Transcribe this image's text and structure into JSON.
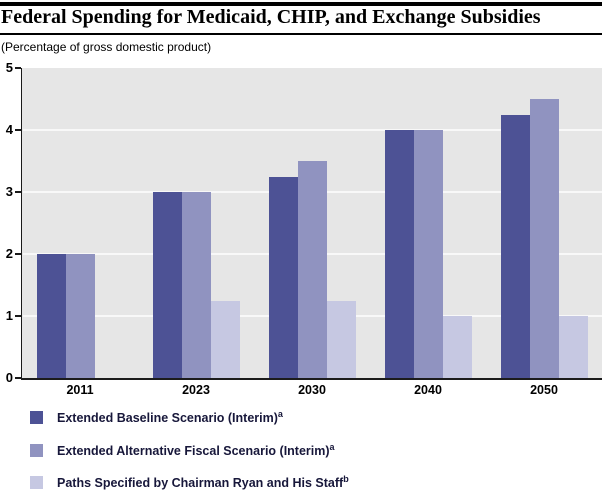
{
  "header": {
    "title": "Federal Spending for Medicaid, CHIP, and Exchange Subsidies",
    "subtitle": "(Percentage of gross domestic product)"
  },
  "chart_data": {
    "type": "bar",
    "title": "Federal Spending for Medicaid, CHIP, and Exchange Subsidies",
    "subtitle": "(Percentage of gross domestic product)",
    "xlabel": "",
    "ylabel": "(Percentage of gross domestic product)",
    "categories": [
      "2011",
      "2023",
      "2030",
      "2040",
      "2050"
    ],
    "series": [
      {
        "name": "Extended Baseline Scenario (Interim)",
        "superscript": "a",
        "color": "#4d5295",
        "values": [
          2.0,
          3.0,
          3.25,
          4.0,
          4.25
        ]
      },
      {
        "name": "Extended Alternative Fiscal Scenario (Interim)",
        "superscript": "a",
        "color": "#9093c0",
        "values": [
          2.0,
          3.0,
          3.5,
          4.0,
          4.5
        ]
      },
      {
        "name": "Paths Specified by Chairman Ryan and His Staff",
        "superscript": "b",
        "color": "#c6c8e2",
        "values": [
          null,
          1.25,
          1.25,
          1.0,
          1.0
        ]
      }
    ],
    "ylim": [
      0,
      5
    ],
    "yticks": [
      0,
      1,
      2,
      3,
      4,
      5
    ],
    "grid": true,
    "gridline_color": "#f8f8f8",
    "plot_background": "#e6e6e6",
    "legend_position": "bottom-left"
  }
}
